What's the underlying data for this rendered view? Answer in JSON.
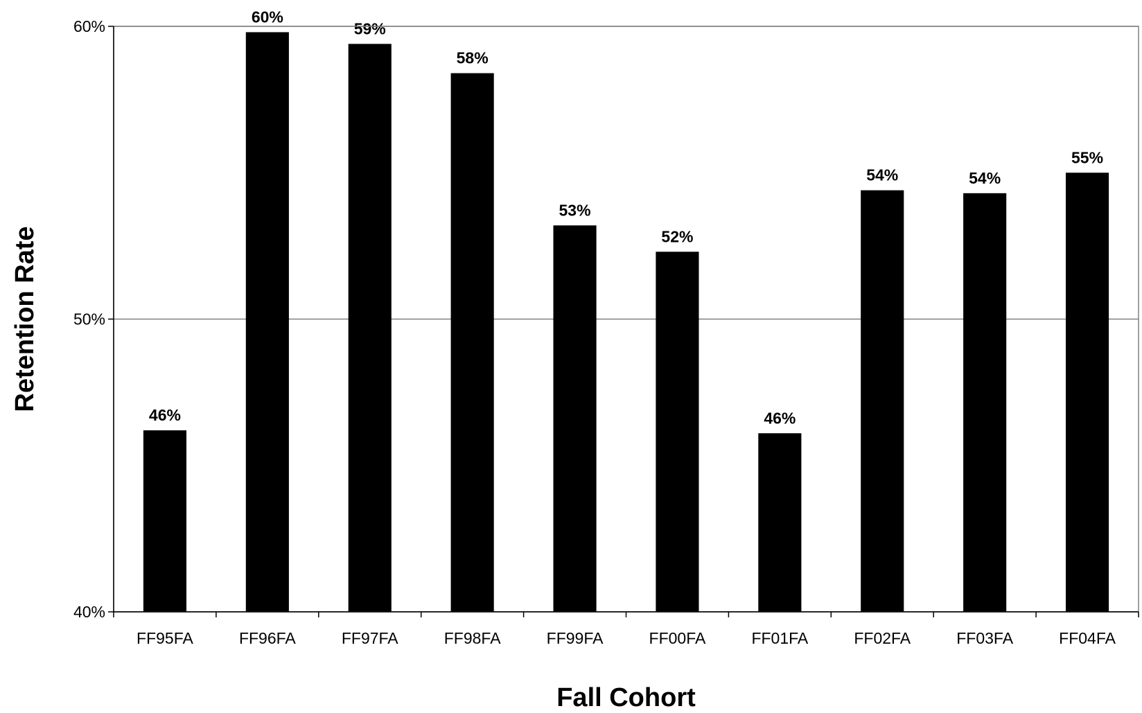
{
  "chart_data": {
    "type": "bar",
    "title": "",
    "xlabel": "Fall Cohort",
    "ylabel": "Retention Rate",
    "categories": [
      "FF95FA",
      "FF96FA",
      "FF97FA",
      "FF98FA",
      "FF99FA",
      "FF00FA",
      "FF01FA",
      "FF02FA",
      "FF03FA",
      "FF04FA"
    ],
    "values": [
      46.2,
      59.8,
      59.4,
      58.4,
      53.2,
      52.3,
      46.1,
      54.4,
      54.3,
      55.0
    ],
    "data_labels": [
      "46%",
      "60%",
      "59%",
      "58%",
      "53%",
      "52%",
      "46%",
      "54%",
      "54%",
      "55%"
    ],
    "ylim": [
      40,
      60
    ],
    "yticks": [
      40,
      50,
      60
    ],
    "ytick_labels": [
      "40%",
      "50%",
      "60%"
    ],
    "grid": true,
    "legend": "none",
    "bar_color": "#000000",
    "gridline_color": "#808080"
  }
}
